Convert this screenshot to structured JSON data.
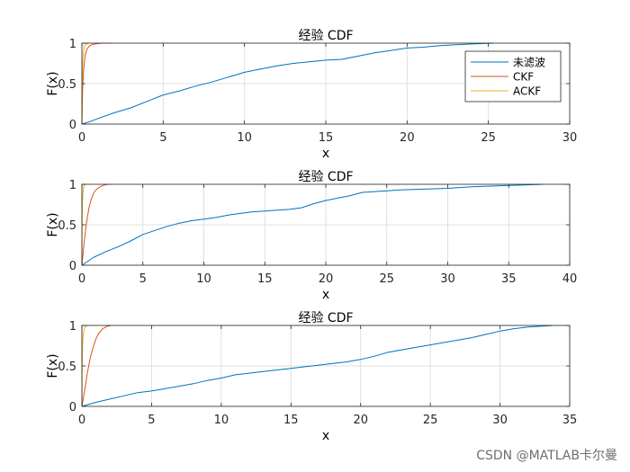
{
  "watermark": "CSDN @MATLAB卡尔曼",
  "colors": {
    "series1": "#0072BD",
    "series2": "#D95319",
    "series3": "#EDB120",
    "axis": "#262626",
    "grid": "#dfdfdf"
  },
  "chart_data": [
    {
      "type": "line",
      "title": "经验 CDF",
      "xlabel": "x",
      "ylabel": "F(x)",
      "xlim": [
        0,
        30
      ],
      "ylim": [
        0,
        1
      ],
      "xticks": [
        0,
        5,
        10,
        15,
        20,
        25,
        30
      ],
      "yticks": [
        0,
        0.5,
        1
      ],
      "grid": true,
      "legend": {
        "position": "top-right",
        "entries": [
          "未滤波",
          "CKF",
          "ACKF"
        ]
      },
      "series": [
        {
          "name": "未滤波",
          "x": [
            0,
            0.5,
            1,
            2,
            3,
            4,
            5,
            6,
            7,
            8,
            9,
            10,
            11,
            12,
            13,
            14,
            15,
            16,
            17,
            18,
            19,
            20,
            21,
            22,
            23,
            24,
            25.3
          ],
          "y": [
            0,
            0.03,
            0.07,
            0.14,
            0.2,
            0.28,
            0.36,
            0.41,
            0.47,
            0.52,
            0.58,
            0.64,
            0.68,
            0.72,
            0.75,
            0.77,
            0.79,
            0.8,
            0.84,
            0.88,
            0.91,
            0.94,
            0.95,
            0.97,
            0.98,
            0.99,
            1
          ]
        },
        {
          "name": "CKF",
          "x": [
            0,
            0.05,
            0.1,
            0.2,
            0.3,
            0.4,
            0.5,
            0.6,
            0.8,
            1.0,
            1.2,
            1.5,
            1.8
          ],
          "y": [
            0,
            0.45,
            0.65,
            0.85,
            0.92,
            0.95,
            0.97,
            0.98,
            0.99,
            0.995,
            1,
            1,
            1
          ]
        },
        {
          "name": "ACKF",
          "x": [
            0,
            0.02,
            0.05,
            0.1,
            0.15,
            0.2,
            0.3,
            0.4,
            0.5
          ],
          "y": [
            0,
            0.5,
            0.75,
            0.9,
            0.96,
            0.98,
            0.99,
            1,
            1
          ]
        }
      ]
    },
    {
      "type": "line",
      "title": "经验 CDF",
      "xlabel": "x",
      "ylabel": "F(x)",
      "xlim": [
        0,
        40
      ],
      "ylim": [
        0,
        1
      ],
      "xticks": [
        0,
        5,
        10,
        15,
        20,
        25,
        30,
        35,
        40
      ],
      "yticks": [
        0,
        0.5,
        1
      ],
      "grid": true,
      "series": [
        {
          "name": "未滤波",
          "x": [
            0,
            1,
            2,
            3,
            4,
            5,
            6,
            7,
            8,
            9,
            10,
            11,
            12,
            13,
            14,
            15,
            16,
            17,
            18,
            19,
            20,
            21,
            22,
            23,
            24,
            25,
            26,
            28,
            30,
            32,
            34,
            36,
            37.8
          ],
          "y": [
            0,
            0.1,
            0.17,
            0.23,
            0.3,
            0.38,
            0.43,
            0.48,
            0.52,
            0.55,
            0.57,
            0.59,
            0.62,
            0.64,
            0.66,
            0.67,
            0.68,
            0.69,
            0.71,
            0.76,
            0.8,
            0.83,
            0.86,
            0.9,
            0.91,
            0.92,
            0.93,
            0.94,
            0.95,
            0.97,
            0.98,
            0.99,
            1
          ]
        },
        {
          "name": "CKF",
          "x": [
            0,
            0.2,
            0.4,
            0.6,
            0.8,
            1.0,
            1.2,
            1.5,
            1.8,
            2.1,
            2.4
          ],
          "y": [
            0,
            0.3,
            0.55,
            0.72,
            0.83,
            0.9,
            0.94,
            0.97,
            0.99,
            1,
            1
          ]
        },
        {
          "name": "ACKF",
          "x": [
            0,
            0.02,
            0.05,
            0.1,
            0.2,
            0.3
          ],
          "y": [
            0,
            0.6,
            0.8,
            0.93,
            0.99,
            1
          ]
        }
      ]
    },
    {
      "type": "line",
      "title": "经验 CDF",
      "xlabel": "x",
      "ylabel": "F(x)",
      "xlim": [
        0,
        35
      ],
      "ylim": [
        0,
        1
      ],
      "xticks": [
        0,
        5,
        10,
        15,
        20,
        25,
        30,
        35
      ],
      "yticks": [
        0,
        0.5,
        1
      ],
      "grid": true,
      "series": [
        {
          "name": "未滤波",
          "x": [
            0,
            1,
            2,
            3,
            4,
            5,
            6,
            7,
            8,
            9,
            10,
            11,
            12,
            13,
            14,
            15,
            16,
            17,
            18,
            19,
            20,
            21,
            22,
            23,
            24,
            25,
            26,
            27,
            28,
            29,
            30,
            31,
            32,
            33.8
          ],
          "y": [
            0,
            0.05,
            0.09,
            0.13,
            0.17,
            0.19,
            0.22,
            0.25,
            0.28,
            0.32,
            0.35,
            0.39,
            0.41,
            0.43,
            0.45,
            0.47,
            0.49,
            0.51,
            0.53,
            0.55,
            0.58,
            0.62,
            0.67,
            0.7,
            0.73,
            0.76,
            0.79,
            0.82,
            0.85,
            0.89,
            0.93,
            0.96,
            0.98,
            1
          ]
        },
        {
          "name": "CKF",
          "x": [
            0,
            0.2,
            0.4,
            0.6,
            0.8,
            1.0,
            1.2,
            1.5,
            1.8,
            2.1
          ],
          "y": [
            0,
            0.2,
            0.42,
            0.6,
            0.73,
            0.83,
            0.9,
            0.96,
            0.99,
            1
          ]
        },
        {
          "name": "ACKF",
          "x": [
            0,
            0.02,
            0.05,
            0.1,
            0.2,
            0.3,
            0.4
          ],
          "y": [
            0,
            0.5,
            0.75,
            0.9,
            0.97,
            0.99,
            1
          ]
        }
      ]
    }
  ]
}
